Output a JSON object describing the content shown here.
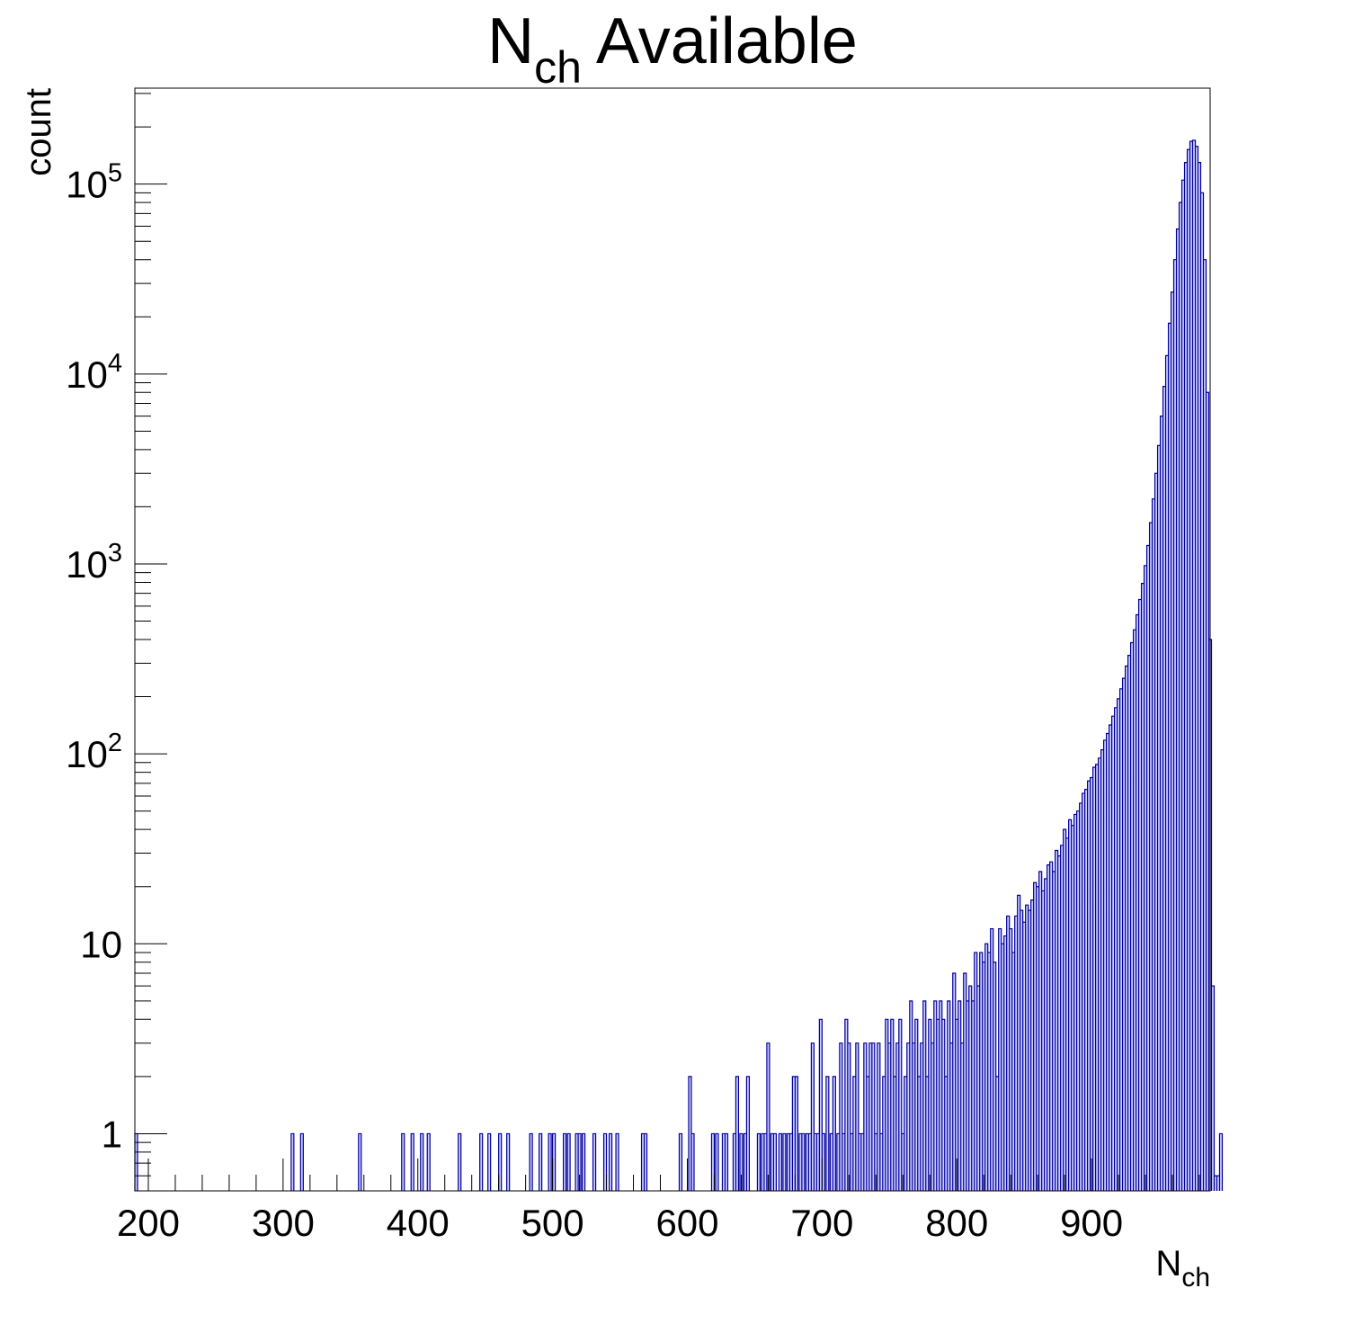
{
  "chart_data": {
    "type": "histogram",
    "title": {
      "main": "N",
      "sub": "ch",
      "rest": " Available"
    },
    "xlabel": {
      "main": "N",
      "sub": "ch"
    },
    "ylabel": "count",
    "x_range": [
      190,
      988
    ],
    "y_range": [
      0.5,
      320000
    ],
    "y_scale": "log",
    "grid": false,
    "legend": "none",
    "x_ticks": [
      {
        "value": 200,
        "label": "200"
      },
      {
        "value": 300,
        "label": "300"
      },
      {
        "value": 400,
        "label": "400"
      },
      {
        "value": 500,
        "label": "500"
      },
      {
        "value": 600,
        "label": "600"
      },
      {
        "value": 700,
        "label": "700"
      },
      {
        "value": 800,
        "label": "800"
      },
      {
        "value": 900,
        "label": "900"
      }
    ],
    "y_ticks": [
      {
        "value": 1,
        "base": "1",
        "exp": ""
      },
      {
        "value": 10,
        "base": "10",
        "exp": ""
      },
      {
        "value": 100,
        "base": "10",
        "exp": "2"
      },
      {
        "value": 1000,
        "base": "10",
        "exp": "3"
      },
      {
        "value": 10000,
        "base": "10",
        "exp": "4"
      },
      {
        "value": 100000,
        "base": "10",
        "exp": "5"
      }
    ],
    "fill_color": "#ccccff",
    "line_color": "#000099",
    "bin_width": 2,
    "bins": [
      [
        190,
        1
      ],
      [
        306,
        1
      ],
      [
        313,
        1
      ],
      [
        356,
        1
      ],
      [
        388,
        1
      ],
      [
        395,
        1
      ],
      [
        402,
        1
      ],
      [
        407,
        1
      ],
      [
        430,
        1
      ],
      [
        446,
        1
      ],
      [
        452,
        1
      ],
      [
        460,
        1
      ],
      [
        466,
        1
      ],
      [
        483,
        1
      ],
      [
        490,
        1
      ],
      [
        497,
        1
      ],
      [
        500,
        1
      ],
      [
        508,
        1
      ],
      [
        511,
        1
      ],
      [
        517,
        1
      ],
      [
        519,
        1
      ],
      [
        522,
        1
      ],
      [
        530,
        1
      ],
      [
        538,
        1
      ],
      [
        542,
        1
      ],
      [
        547,
        1
      ],
      [
        566,
        1
      ],
      [
        568,
        1
      ],
      [
        594,
        1
      ],
      [
        601,
        2
      ],
      [
        603,
        1
      ],
      [
        618,
        1
      ],
      [
        621,
        1
      ],
      [
        626,
        1
      ],
      [
        628,
        1
      ],
      [
        634,
        1
      ],
      [
        636,
        2
      ],
      [
        639,
        1
      ],
      [
        642,
        1
      ],
      [
        644,
        2
      ],
      [
        652,
        1
      ],
      [
        655,
        1
      ],
      [
        657,
        1
      ],
      [
        659,
        3
      ],
      [
        662,
        1
      ],
      [
        664,
        1
      ],
      [
        668,
        1
      ],
      [
        671,
        1
      ],
      [
        674,
        1
      ],
      [
        676,
        1
      ],
      [
        678,
        2
      ],
      [
        680,
        2
      ],
      [
        683,
        1
      ],
      [
        685,
        1
      ],
      [
        688,
        1
      ],
      [
        690,
        1
      ],
      [
        692,
        3
      ],
      [
        694,
        1
      ],
      [
        696,
        1
      ],
      [
        698,
        4
      ],
      [
        700,
        1
      ],
      [
        703,
        2
      ],
      [
        706,
        1
      ],
      [
        708,
        2
      ],
      [
        711,
        1
      ],
      [
        713,
        3
      ],
      [
        715,
        1
      ],
      [
        717,
        4
      ],
      [
        719,
        3
      ],
      [
        721,
        1
      ],
      [
        723,
        2
      ],
      [
        725,
        3
      ],
      [
        727,
        1
      ],
      [
        729,
        1
      ],
      [
        731,
        3
      ],
      [
        733,
        2
      ],
      [
        735,
        3
      ],
      [
        737,
        3
      ],
      [
        739,
        1
      ],
      [
        741,
        3
      ],
      [
        743,
        1
      ],
      [
        745,
        2
      ],
      [
        747,
        4
      ],
      [
        749,
        3
      ],
      [
        751,
        4
      ],
      [
        753,
        2
      ],
      [
        755,
        3
      ],
      [
        757,
        4
      ],
      [
        759,
        1
      ],
      [
        761,
        2
      ],
      [
        763,
        3
      ],
      [
        765,
        5
      ],
      [
        767,
        3
      ],
      [
        769,
        4
      ],
      [
        771,
        2
      ],
      [
        773,
        3
      ],
      [
        775,
        5
      ],
      [
        777,
        2
      ],
      [
        779,
        4
      ],
      [
        781,
        3
      ],
      [
        783,
        5
      ],
      [
        785,
        4
      ],
      [
        787,
        5
      ],
      [
        789,
        4
      ],
      [
        791,
        2
      ],
      [
        793,
        5
      ],
      [
        795,
        3
      ],
      [
        797,
        7
      ],
      [
        799,
        4
      ],
      [
        801,
        5
      ],
      [
        803,
        3
      ],
      [
        805,
        7
      ],
      [
        807,
        5
      ],
      [
        809,
        6
      ],
      [
        811,
        5
      ],
      [
        813,
        9
      ],
      [
        815,
        6
      ],
      [
        817,
        9
      ],
      [
        819,
        8
      ],
      [
        821,
        10
      ],
      [
        823,
        9
      ],
      [
        825,
        12
      ],
      [
        827,
        8
      ],
      [
        829,
        2
      ],
      [
        831,
        12
      ],
      [
        833,
        10
      ],
      [
        835,
        11
      ],
      [
        837,
        14
      ],
      [
        839,
        12
      ],
      [
        841,
        9
      ],
      [
        843,
        14
      ],
      [
        845,
        18
      ],
      [
        847,
        15
      ],
      [
        849,
        13
      ],
      [
        851,
        16
      ],
      [
        853,
        15
      ],
      [
        855,
        17
      ],
      [
        857,
        21
      ],
      [
        859,
        20
      ],
      [
        861,
        24
      ],
      [
        863,
        19
      ],
      [
        865,
        22
      ],
      [
        867,
        26
      ],
      [
        869,
        27
      ],
      [
        871,
        24
      ],
      [
        873,
        31
      ],
      [
        875,
        29
      ],
      [
        877,
        33
      ],
      [
        879,
        40
      ],
      [
        881,
        36
      ],
      [
        883,
        45
      ],
      [
        885,
        42
      ],
      [
        887,
        48
      ],
      [
        889,
        50
      ],
      [
        891,
        55
      ],
      [
        893,
        62
      ],
      [
        895,
        65
      ],
      [
        897,
        72
      ],
      [
        899,
        75
      ],
      [
        901,
        85
      ],
      [
        903,
        88
      ],
      [
        905,
        95
      ],
      [
        907,
        105
      ],
      [
        909,
        118
      ],
      [
        911,
        128
      ],
      [
        913,
        142
      ],
      [
        915,
        158
      ],
      [
        917,
        175
      ],
      [
        919,
        195
      ],
      [
        921,
        220
      ],
      [
        923,
        250
      ],
      [
        925,
        290
      ],
      [
        927,
        330
      ],
      [
        929,
        385
      ],
      [
        931,
        450
      ],
      [
        933,
        540
      ],
      [
        935,
        650
      ],
      [
        937,
        790
      ],
      [
        939,
        980
      ],
      [
        941,
        1250
      ],
      [
        943,
        1650
      ],
      [
        945,
        2200
      ],
      [
        947,
        3000
      ],
      [
        949,
        4200
      ],
      [
        951,
        6000
      ],
      [
        953,
        8600
      ],
      [
        955,
        12500
      ],
      [
        957,
        18500
      ],
      [
        959,
        27000
      ],
      [
        961,
        40000
      ],
      [
        963,
        58000
      ],
      [
        965,
        80000
      ],
      [
        967,
        105000
      ],
      [
        969,
        130000
      ],
      [
        971,
        152000
      ],
      [
        973,
        168000
      ],
      [
        975,
        170000
      ],
      [
        977,
        158000
      ],
      [
        979,
        130000
      ],
      [
        981,
        90000
      ],
      [
        983,
        40000
      ],
      [
        985,
        8000
      ],
      [
        987,
        400
      ],
      [
        989,
        6
      ],
      [
        991,
        0.6
      ],
      [
        993,
        0.6
      ],
      [
        995,
        1
      ]
    ]
  }
}
